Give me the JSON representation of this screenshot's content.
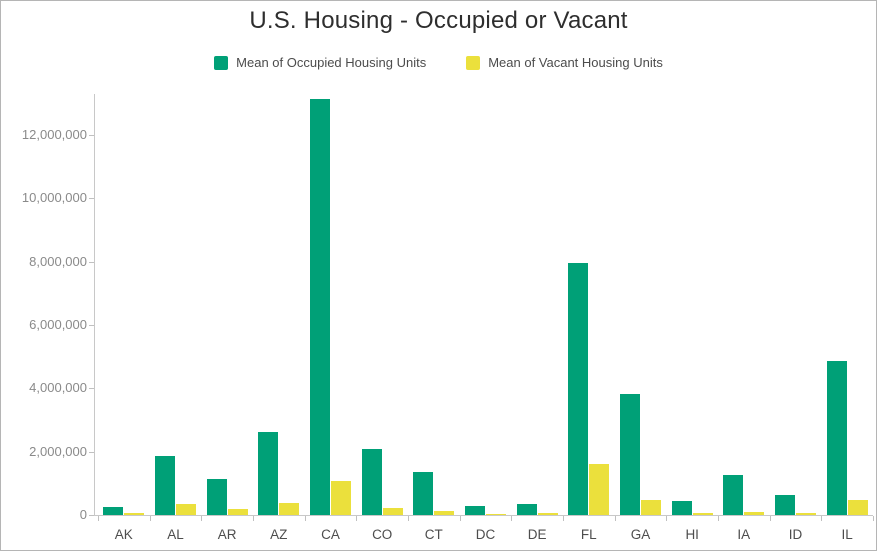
{
  "title": "U.S. Housing - Occupied or Vacant",
  "legend": [
    {
      "label": "Mean of Occupied Housing Units",
      "color": "#00a077"
    },
    {
      "label": "Mean of Vacant Housing Units",
      "color": "#ebe03c"
    }
  ],
  "chart_data": {
    "type": "bar",
    "title": "U.S. Housing - Occupied or Vacant",
    "categories": [
      "AK",
      "AL",
      "AR",
      "AZ",
      "CA",
      "CO",
      "CT",
      "DC",
      "DE",
      "FL",
      "GA",
      "HI",
      "IA",
      "ID",
      "IL"
    ],
    "series": [
      {
        "name": "Mean of Occupied Housing Units",
        "color": "#00a077",
        "values": [
          240000,
          1850000,
          1130000,
          2610000,
          13150000,
          2100000,
          1370000,
          270000,
          350000,
          7950000,
          3820000,
          445000,
          1255000,
          630000,
          4870000
        ]
      },
      {
        "name": "Mean of Vacant Housing Units",
        "color": "#ebe03c",
        "values": [
          55000,
          360000,
          185000,
          370000,
          1060000,
          215000,
          115000,
          30000,
          65000,
          1600000,
          470000,
          75000,
          110000,
          70000,
          460000
        ]
      }
    ],
    "xlabel": "",
    "ylabel": "",
    "ylim": [
      0,
      13300000
    ],
    "yticks": [
      {
        "value": 0,
        "label": "0"
      },
      {
        "value": 2000000,
        "label": "2,000,000"
      },
      {
        "value": 4000000,
        "label": "4,000,000"
      },
      {
        "value": 6000000,
        "label": "6,000,000"
      },
      {
        "value": 8000000,
        "label": "8,000,000"
      },
      {
        "value": 10000000,
        "label": "10,000,000"
      },
      {
        "value": 12000000,
        "label": "12,000,000"
      }
    ],
    "grid": false,
    "legend_position": "top"
  }
}
